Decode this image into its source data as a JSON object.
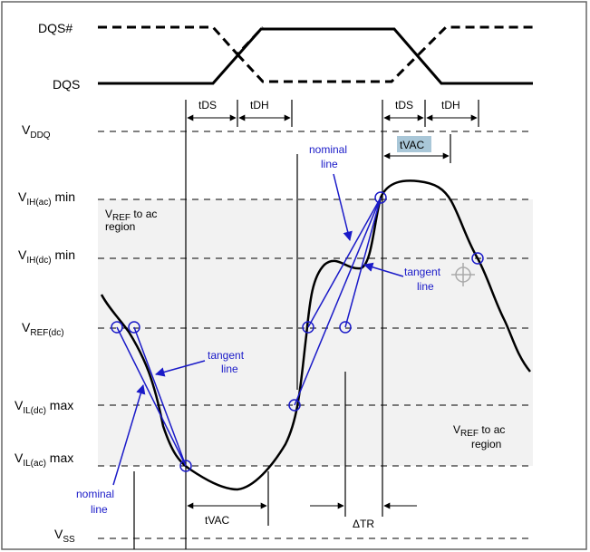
{
  "signals": {
    "dqs_bar": "DQS#",
    "dqs": "DQS"
  },
  "levels": {
    "vddq": {
      "main": "V",
      "sub": "DDQ",
      "rest": ""
    },
    "vih_ac": {
      "main": "V",
      "sub": "IH(ac)",
      "rest": " min"
    },
    "vih_dc": {
      "main": "V",
      "sub": "IH(dc)",
      "rest": " min"
    },
    "vref_dc": {
      "main": "V",
      "sub": "REF(dc)",
      "rest": ""
    },
    "vil_dc": {
      "main": "V",
      "sub": "IL(dc)",
      "rest": " max"
    },
    "vil_ac": {
      "main": "V",
      "sub": "IL(ac)",
      "rest": " max"
    },
    "vss": {
      "main": "V",
      "sub": "SS",
      "rest": ""
    }
  },
  "timing": {
    "tds_left": "tDS",
    "tdh_left": "tDH",
    "tds_right": "tDS",
    "tdh_right": "tDH",
    "tvac_top": "tVAC",
    "tvac_bottom": "tVAC",
    "delta_tr": "ΔTR"
  },
  "regions": {
    "upper_line1_main": "V",
    "upper_line1_sub": "REF",
    "upper_line1_rest": " to ac",
    "upper_line2": "region",
    "lower_line1_main": "V",
    "lower_line1_sub": "REF",
    "lower_line1_rest": " to ac",
    "lower_line2": "region"
  },
  "annotations": {
    "tangent_left_1": "tangent",
    "tangent_left_2": "line",
    "nominal_left_1": "nominal",
    "nominal_left_2": "line",
    "nominal_right_1": "nominal",
    "nominal_right_2": "line",
    "tangent_right_1": "tangent",
    "tangent_right_2": "line"
  },
  "colors": {
    "annotation_blue": "#1a1ac8",
    "region_shade": "#f2f2f2",
    "tvac_highlight": "#a9c7d8"
  }
}
